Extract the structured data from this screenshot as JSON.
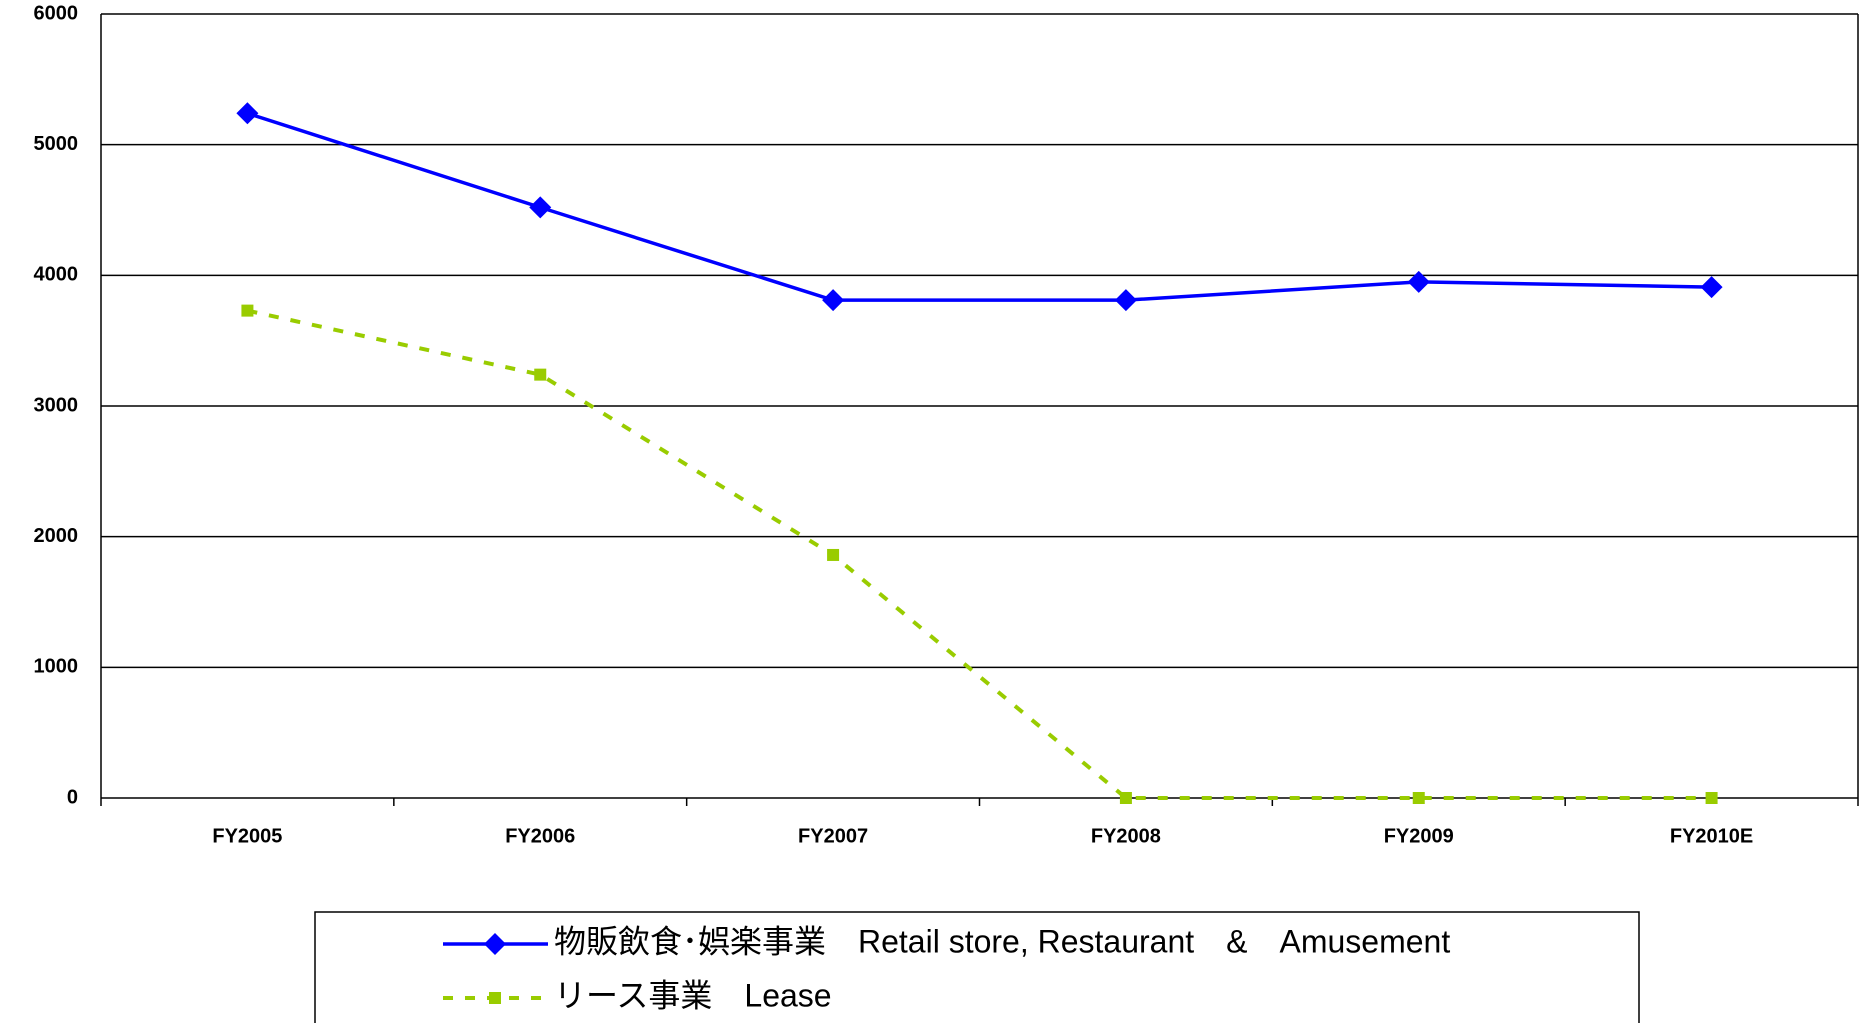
{
  "chart_data": {
    "type": "line",
    "categories": [
      "FY2005",
      "FY2006",
      "FY2007",
      "FY2008",
      "FY2009",
      "FY2010E"
    ],
    "series": [
      {
        "name": "物販飲食･娯楽事業　Retail store, Restaurant　&　Amusement",
        "color": "#0000ff",
        "values": [
          5240,
          4520,
          3810,
          3810,
          3950,
          3910
        ]
      },
      {
        "name": "リース事業　Lease",
        "color": "#99cc00",
        "values": [
          3730,
          3240,
          1860,
          0,
          0,
          0
        ]
      }
    ],
    "ylim": [
      0,
      6000
    ],
    "yticks": [
      0,
      1000,
      2000,
      3000,
      4000,
      5000,
      6000
    ],
    "grid": true
  }
}
